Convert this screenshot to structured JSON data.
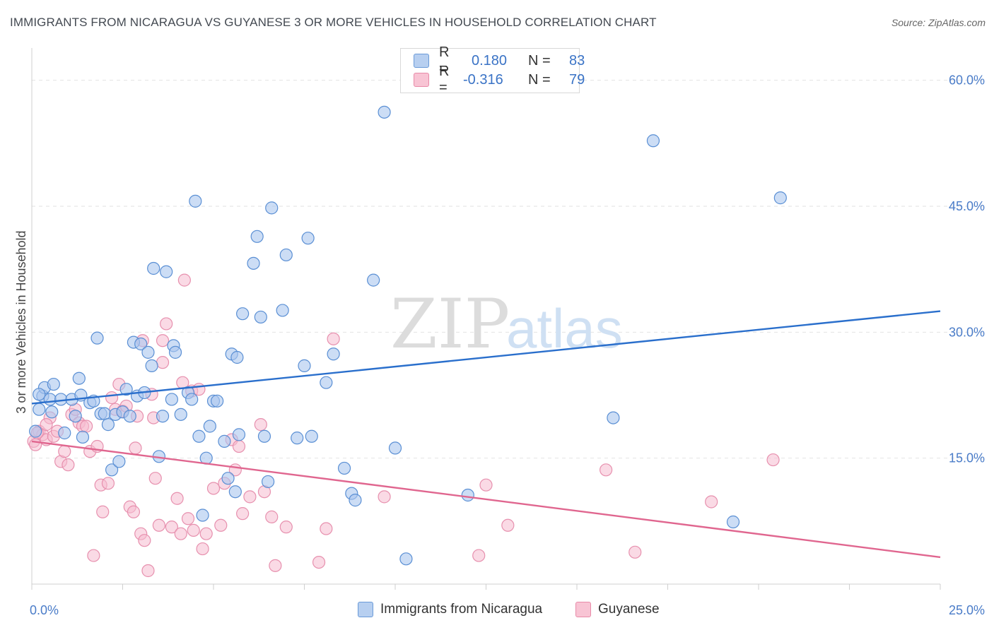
{
  "title": "IMMIGRANTS FROM NICARAGUA VS GUYANESE 3 OR MORE VEHICLES IN HOUSEHOLD CORRELATION CHART",
  "source": "Source: ZipAtlas.com",
  "watermark": {
    "zip": "ZIP",
    "atlas": "atlas"
  },
  "legend": {
    "r_label": "R =",
    "n_label": "N =",
    "rows": [
      {
        "r": "0.180",
        "n": "83",
        "fill": "#b7cff0",
        "stroke": "#6a9ad8"
      },
      {
        "r": "-0.316",
        "n": "79",
        "fill": "#f8c4d4",
        "stroke": "#e88aa8"
      }
    ]
  },
  "colors": {
    "blue_fill": "#aac6ee",
    "blue_stroke": "#5a8fd4",
    "blue_line": "#2a6fcc",
    "pink_fill": "#f6bcd0",
    "pink_stroke": "#e790ae",
    "pink_line": "#e0668f",
    "tick_text": "#4a7cc8",
    "grid": "#e2e2e2"
  },
  "chart_data": {
    "type": "scatter",
    "ylabel": "3 or more Vehicles in Household",
    "xlabel": "",
    "x_tick_labels": [
      "0.0%",
      "25.0%"
    ],
    "y_tick_labels": [
      "15.0%",
      "30.0%",
      "45.0%",
      "60.0%"
    ],
    "xlim": [
      0,
      25
    ],
    "ylim": [
      0,
      63
    ],
    "series": [
      {
        "name": "Immigrants from Nicaragua",
        "trend": [
          [
            0,
            21.5
          ],
          [
            25,
            32.5
          ]
        ],
        "points": [
          [
            0.1,
            18.2
          ],
          [
            0.2,
            20.8
          ],
          [
            0.3,
            22.4
          ],
          [
            0.35,
            23.4
          ],
          [
            0.6,
            23.8
          ],
          [
            0.55,
            20.5
          ],
          [
            0.5,
            22.0
          ],
          [
            0.8,
            22.0
          ],
          [
            0.9,
            18.0
          ],
          [
            1.1,
            22.0
          ],
          [
            1.2,
            20.0
          ],
          [
            1.3,
            24.5
          ],
          [
            1.35,
            22.5
          ],
          [
            1.4,
            17.5
          ],
          [
            1.6,
            21.6
          ],
          [
            1.7,
            21.8
          ],
          [
            1.8,
            29.3
          ],
          [
            1.9,
            20.3
          ],
          [
            2.0,
            20.3
          ],
          [
            2.1,
            19.0
          ],
          [
            2.2,
            13.6
          ],
          [
            2.3,
            20.2
          ],
          [
            2.4,
            14.6
          ],
          [
            2.5,
            20.5
          ],
          [
            2.6,
            23.2
          ],
          [
            2.7,
            20.0
          ],
          [
            2.8,
            28.8
          ],
          [
            2.9,
            22.4
          ],
          [
            3.0,
            28.6
          ],
          [
            3.1,
            22.8
          ],
          [
            3.2,
            27.6
          ],
          [
            3.3,
            26.0
          ],
          [
            3.35,
            37.6
          ],
          [
            3.5,
            15.2
          ],
          [
            3.6,
            20.0
          ],
          [
            3.7,
            37.2
          ],
          [
            3.85,
            22.0
          ],
          [
            3.9,
            28.4
          ],
          [
            3.95,
            27.6
          ],
          [
            4.1,
            20.2
          ],
          [
            4.3,
            22.8
          ],
          [
            4.4,
            22.0
          ],
          [
            4.5,
            45.6
          ],
          [
            4.6,
            17.6
          ],
          [
            4.7,
            8.2
          ],
          [
            4.8,
            15.0
          ],
          [
            4.9,
            18.8
          ],
          [
            5.0,
            21.8
          ],
          [
            5.1,
            21.8
          ],
          [
            5.3,
            17.0
          ],
          [
            5.4,
            12.6
          ],
          [
            5.5,
            27.4
          ],
          [
            5.6,
            11.0
          ],
          [
            5.65,
            27.0
          ],
          [
            5.7,
            17.8
          ],
          [
            5.8,
            32.2
          ],
          [
            6.1,
            38.2
          ],
          [
            6.2,
            41.4
          ],
          [
            6.3,
            31.8
          ],
          [
            6.4,
            17.6
          ],
          [
            6.5,
            12.2
          ],
          [
            6.6,
            44.8
          ],
          [
            6.9,
            32.6
          ],
          [
            7.0,
            39.2
          ],
          [
            7.3,
            17.4
          ],
          [
            7.5,
            26.0
          ],
          [
            7.6,
            41.2
          ],
          [
            7.7,
            17.6
          ],
          [
            8.1,
            24.0
          ],
          [
            8.3,
            27.4
          ],
          [
            8.6,
            13.8
          ],
          [
            8.8,
            10.8
          ],
          [
            8.9,
            10.0
          ],
          [
            9.4,
            36.2
          ],
          [
            9.7,
            56.2
          ],
          [
            10.0,
            16.2
          ],
          [
            10.3,
            3.0
          ],
          [
            12.0,
            10.6
          ],
          [
            16.0,
            19.8
          ],
          [
            17.1,
            52.8
          ],
          [
            19.3,
            7.4
          ],
          [
            20.6,
            46.0
          ],
          [
            0.2,
            22.6
          ]
        ]
      },
      {
        "name": "Guyanese",
        "trend": [
          [
            0,
            17.0
          ],
          [
            25,
            3.2
          ]
        ],
        "points": [
          [
            0.05,
            17.0
          ],
          [
            0.1,
            16.6
          ],
          [
            0.2,
            18.2
          ],
          [
            0.3,
            17.8
          ],
          [
            0.4,
            17.2
          ],
          [
            0.5,
            19.8
          ],
          [
            0.6,
            17.6
          ],
          [
            0.7,
            18.2
          ],
          [
            0.8,
            14.6
          ],
          [
            0.9,
            15.8
          ],
          [
            1.0,
            14.2
          ],
          [
            1.1,
            20.2
          ],
          [
            1.2,
            20.8
          ],
          [
            1.3,
            19.2
          ],
          [
            1.4,
            18.8
          ],
          [
            1.5,
            18.8
          ],
          [
            1.6,
            15.8
          ],
          [
            1.7,
            3.4
          ],
          [
            1.8,
            16.4
          ],
          [
            1.9,
            11.8
          ],
          [
            1.95,
            8.6
          ],
          [
            2.1,
            12.0
          ],
          [
            2.2,
            22.2
          ],
          [
            2.3,
            20.8
          ],
          [
            2.4,
            23.8
          ],
          [
            2.5,
            20.6
          ],
          [
            2.6,
            21.2
          ],
          [
            2.7,
            9.2
          ],
          [
            2.8,
            8.6
          ],
          [
            2.85,
            16.2
          ],
          [
            3.0,
            6.0
          ],
          [
            3.05,
            29.0
          ],
          [
            3.1,
            5.2
          ],
          [
            3.2,
            1.6
          ],
          [
            3.3,
            22.6
          ],
          [
            3.35,
            19.8
          ],
          [
            3.4,
            12.6
          ],
          [
            3.5,
            7.0
          ],
          [
            3.6,
            26.4
          ],
          [
            3.7,
            31.0
          ],
          [
            3.85,
            6.8
          ],
          [
            4.0,
            10.2
          ],
          [
            4.1,
            6.0
          ],
          [
            4.15,
            24.0
          ],
          [
            4.2,
            36.2
          ],
          [
            4.3,
            7.8
          ],
          [
            4.4,
            23.0
          ],
          [
            4.45,
            6.4
          ],
          [
            4.6,
            23.2
          ],
          [
            4.7,
            4.2
          ],
          [
            4.8,
            6.0
          ],
          [
            5.0,
            11.4
          ],
          [
            5.2,
            7.0
          ],
          [
            5.3,
            12.0
          ],
          [
            5.5,
            17.2
          ],
          [
            5.6,
            13.6
          ],
          [
            5.7,
            16.4
          ],
          [
            5.8,
            8.4
          ],
          [
            6.0,
            10.4
          ],
          [
            6.3,
            19.0
          ],
          [
            6.4,
            11.0
          ],
          [
            6.6,
            8.0
          ],
          [
            6.7,
            2.2
          ],
          [
            7.0,
            6.8
          ],
          [
            7.9,
            2.6
          ],
          [
            8.1,
            6.6
          ],
          [
            8.3,
            29.2
          ],
          [
            9.7,
            10.4
          ],
          [
            12.3,
            3.4
          ],
          [
            12.5,
            11.8
          ],
          [
            13.1,
            7.0
          ],
          [
            15.8,
            13.6
          ],
          [
            16.6,
            3.8
          ],
          [
            18.7,
            9.8
          ],
          [
            20.4,
            14.8
          ],
          [
            0.15,
            18.0
          ],
          [
            0.4,
            19.0
          ],
          [
            2.9,
            20.0
          ],
          [
            3.6,
            29.0
          ]
        ]
      }
    ],
    "grid": true,
    "legend_position": "top-center"
  },
  "bottom_legend": [
    {
      "label": "Immigrants from Nicaragua",
      "fill": "#b7cff0",
      "stroke": "#6a9ad8"
    },
    {
      "label": "Guyanese",
      "fill": "#f8c4d4",
      "stroke": "#e88aa8"
    }
  ]
}
